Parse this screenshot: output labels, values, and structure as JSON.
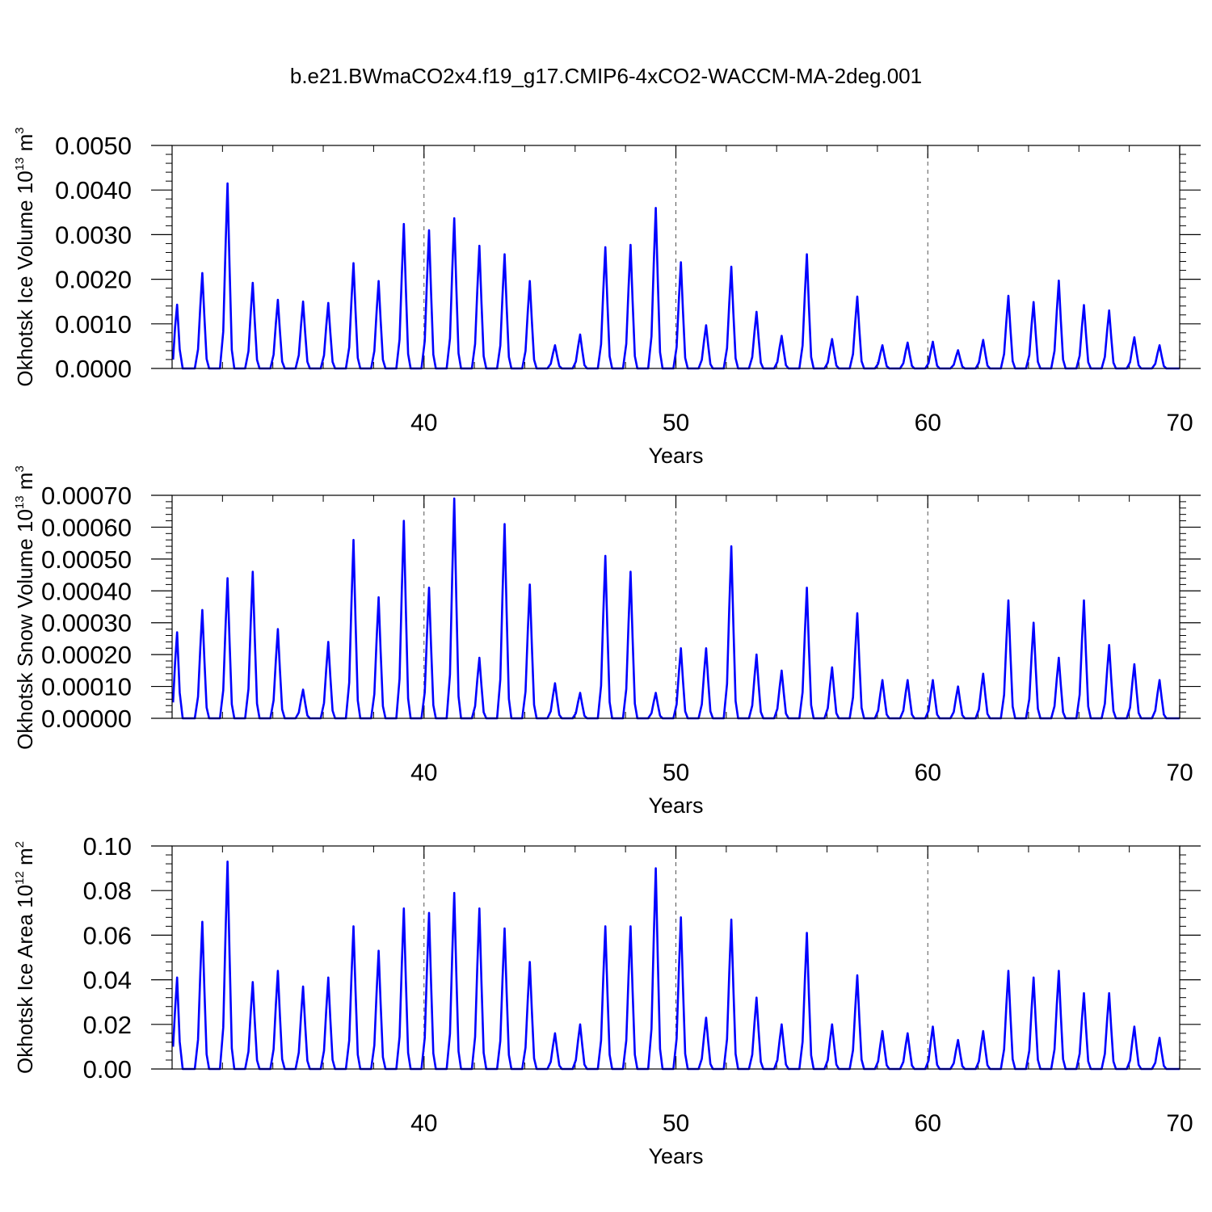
{
  "chart_data": {
    "type": "line",
    "title": "b.e21.BWmaCO2x4.f19_g17.CMIP6-4xCO2-WACCM-MA-2deg.001",
    "line_color": "#0000ff",
    "xlim": [
      30,
      70
    ],
    "x_ticks": [
      40,
      50,
      60,
      70
    ],
    "x_tick_labels": [
      "40",
      "50",
      "60",
      "70"
    ],
    "xlabel": "Years",
    "grid": "dashed vertical at major x ticks",
    "start_year": 30,
    "winter_peaks_x": [
      30.2,
      31.2,
      32.2,
      33.2,
      34.2,
      35.2,
      36.2,
      37.2,
      38.2,
      39.2,
      40.2,
      41.2,
      42.2,
      43.2,
      44.2,
      45.2,
      46.2,
      47.2,
      48.2,
      49.2,
      50.2,
      51.2,
      52.2,
      53.2,
      54.2,
      55.2,
      56.2,
      57.2,
      58.2,
      59.2,
      60.2,
      61.2,
      62.2,
      63.2,
      64.2,
      65.2,
      66.2,
      67.2,
      68.2,
      69.2
    ],
    "panels": [
      {
        "name": "ice-volume",
        "ylabel_main": "Okhotsk Ice Volume 10",
        "ylabel_exp": "13",
        "ylabel_unit": " m",
        "ylabel_unit_exp": "3",
        "ylim": [
          0,
          0.005
        ],
        "y_ticks": [
          0,
          0.001,
          0.002,
          0.003,
          0.004,
          0.005
        ],
        "y_tick_labels": [
          "0.0000",
          "0.0010",
          "0.0020",
          "0.0030",
          "0.0040",
          "0.0050"
        ],
        "start_value": 0.0002,
        "peaks": [
          0.00143,
          0.00214,
          0.00415,
          0.00192,
          0.00154,
          0.0015,
          0.00147,
          0.00236,
          0.00196,
          0.00324,
          0.0031,
          0.00337,
          0.00275,
          0.00256,
          0.00196,
          0.00052,
          0.00076,
          0.00272,
          0.00277,
          0.0036,
          0.00238,
          0.00097,
          0.00228,
          0.00127,
          0.00073,
          0.00256,
          0.00066,
          0.00161,
          0.00052,
          0.00058,
          0.0006,
          0.00041,
          0.00064,
          0.00163,
          0.00149,
          0.00197,
          0.00142,
          0.0013,
          0.0007,
          0.00052
        ]
      },
      {
        "name": "snow-volume",
        "ylabel_main": "Okhotsk Snow Volume 10",
        "ylabel_exp": "13",
        "ylabel_unit": " m",
        "ylabel_unit_exp": "3",
        "ylim": [
          0,
          0.0007
        ],
        "y_ticks": [
          0,
          0.0001,
          0.0002,
          0.0003,
          0.0004,
          0.0005,
          0.0006,
          0.0007
        ],
        "y_tick_labels": [
          "0.00000",
          "0.00010",
          "0.00020",
          "0.00030",
          "0.00040",
          "0.00050",
          "0.00060",
          "0.00070"
        ],
        "start_value": 5e-05,
        "peaks": [
          0.00027,
          0.00034,
          0.00044,
          0.00046,
          0.00028,
          9e-05,
          0.00024,
          0.00056,
          0.00038,
          0.00062,
          0.00041,
          0.00069,
          0.00019,
          0.00061,
          0.00042,
          0.00011,
          8e-05,
          0.00051,
          0.00046,
          8e-05,
          0.00022,
          0.00022,
          0.00054,
          0.0002,
          0.00015,
          0.00041,
          0.00016,
          0.00033,
          0.00012,
          0.00012,
          0.00012,
          0.0001,
          0.00014,
          0.00037,
          0.0003,
          0.00019,
          0.00037,
          0.00023,
          0.00017,
          0.00012
        ]
      },
      {
        "name": "ice-area",
        "ylabel_main": "Okhotsk Ice Area 10",
        "ylabel_exp": "12",
        "ylabel_unit": " m",
        "ylabel_unit_exp": "2",
        "ylim": [
          0,
          0.1
        ],
        "y_ticks": [
          0,
          0.02,
          0.04,
          0.06,
          0.08,
          0.1
        ],
        "y_tick_labels": [
          "0.00",
          "0.02",
          "0.04",
          "0.06",
          "0.08",
          "0.10"
        ],
        "start_value": 0.01,
        "peaks": [
          0.041,
          0.066,
          0.093,
          0.039,
          0.044,
          0.037,
          0.041,
          0.064,
          0.053,
          0.072,
          0.07,
          0.079,
          0.072,
          0.063,
          0.048,
          0.016,
          0.02,
          0.064,
          0.064,
          0.09,
          0.068,
          0.023,
          0.067,
          0.032,
          0.02,
          0.061,
          0.02,
          0.042,
          0.017,
          0.016,
          0.019,
          0.013,
          0.017,
          0.044,
          0.041,
          0.044,
          0.034,
          0.034,
          0.019,
          0.014
        ]
      }
    ]
  }
}
